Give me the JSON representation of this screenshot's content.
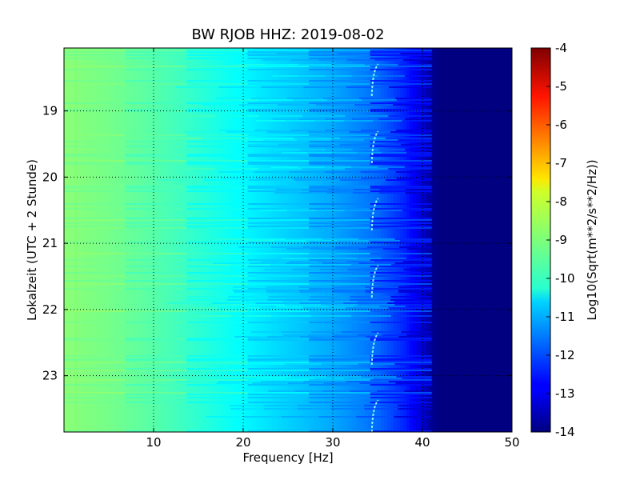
{
  "chart_data": {
    "type": "heatmap",
    "title": "BW RJOB HHZ: 2019-08-02",
    "xlabel": "Frequency [Hz]",
    "ylabel": "Lokalzeit (UTC + 2 Stunde)",
    "xlim": [
      0,
      50
    ],
    "ylim": [
      18.05,
      23.85
    ],
    "x_ticks": [
      "10",
      "20",
      "30",
      "40",
      "50"
    ],
    "x_tick_values": [
      10,
      20,
      30,
      40,
      50
    ],
    "y_ticks": [
      "19",
      "20",
      "21",
      "22",
      "23"
    ],
    "y_tick_values": [
      19,
      20,
      21,
      22,
      23
    ],
    "y_inverted": true,
    "grid": true,
    "colorscale": "jet",
    "colorbar": {
      "label": "Log10(Sqrt(m**2/s**2/Hz))",
      "min": -14,
      "max": -4,
      "ticks": [
        "-4",
        "-5",
        "-6",
        "-7",
        "-8",
        "-9",
        "-10",
        "-11",
        "-12",
        "-13",
        "-14"
      ],
      "tick_values": [
        -4,
        -5,
        -6,
        -7,
        -8,
        -9,
        -10,
        -11,
        -12,
        -13,
        -14
      ]
    },
    "spectrum_profile": {
      "frequency_hz": [
        0,
        5,
        10,
        15,
        20,
        25,
        30,
        35,
        38,
        40,
        41,
        42,
        50
      ],
      "log_amplitude": [
        -8.9,
        -9.1,
        -9.4,
        -9.8,
        -10.3,
        -10.7,
        -11.1,
        -11.7,
        -12.4,
        -13.2,
        -13.8,
        -14,
        -14
      ]
    },
    "spectral_line_hz": 34.8
  }
}
